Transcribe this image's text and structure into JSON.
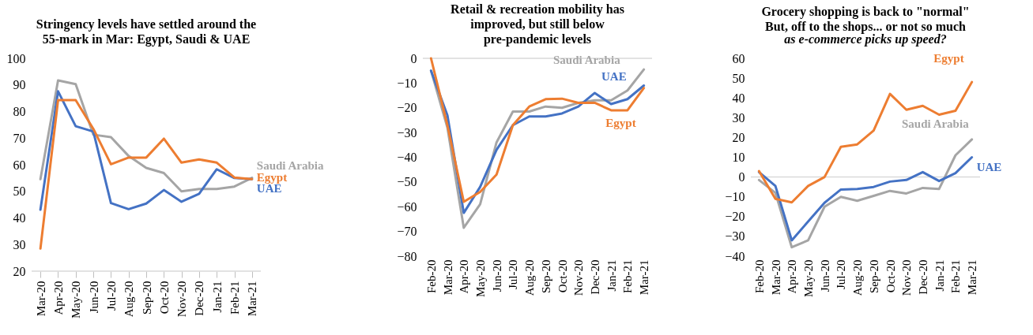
{
  "chart_data": [
    {
      "type": "line",
      "title": "Stringency levels have settled around the 55-mark in Mar: Egypt, Saudi & UAE",
      "categories": [
        "Mar-20",
        "Apr-20",
        "May-20",
        "Jun-20",
        "Jul-20",
        "Aug-20",
        "Sep-20",
        "Oct-20",
        "Nov-20",
        "Dec-20",
        "Jan-21",
        "Feb-21",
        "Mar-21"
      ],
      "ylim": [
        20,
        100
      ],
      "yticks": [
        20,
        30,
        40,
        50,
        60,
        70,
        80,
        90,
        100
      ],
      "series": [
        {
          "name": "Egypt",
          "color": "#ed7d31",
          "values": [
            28.5,
            84.3,
            84.3,
            73.5,
            60.2,
            62.7,
            62.7,
            69.8,
            60.8,
            62.0,
            60.8,
            55.2,
            54.6
          ]
        },
        {
          "name": "UAE",
          "color": "#4472c4",
          "values": [
            43.1,
            87.6,
            74.5,
            72.5,
            45.6,
            43.3,
            45.4,
            50.5,
            46.1,
            49.1,
            58.3,
            55.0,
            54.6
          ]
        },
        {
          "name": "Saudi Arabia",
          "color": "#a5a5a5",
          "values": [
            54.6,
            91.7,
            90.3,
            71.3,
            70.4,
            63.3,
            58.8,
            56.9,
            50.0,
            50.9,
            50.9,
            51.8,
            55.1
          ]
        }
      ]
    },
    {
      "type": "line",
      "title": "Retail & recreation mobility has improved, but still below pre-pandemic levels",
      "categories": [
        "Feb-20",
        "Mar-20",
        "Apr-20",
        "May-20",
        "Jun-20",
        "Jul-20",
        "Aug-20",
        "Sep-20",
        "Oct-20",
        "Nov-20",
        "Dec-20",
        "Jan-21",
        "Feb-21",
        "Mar-21"
      ],
      "ylim": [
        -80,
        0
      ],
      "yticks": [
        -80,
        -70,
        -60,
        -50,
        -40,
        -30,
        -20,
        -10,
        0
      ],
      "series": [
        {
          "name": "Egypt",
          "color": "#ed7d31",
          "values": [
            0,
            -27,
            -58,
            -54,
            -47,
            -27,
            -19.5,
            -16.5,
            -16.3,
            -18,
            -18,
            -21,
            -21,
            -12
          ]
        },
        {
          "name": "UAE",
          "color": "#4472c4",
          "values": [
            -5,
            -23,
            -62.5,
            -52,
            -37,
            -27,
            -23.5,
            -23.5,
            -22.3,
            -19.5,
            -14,
            -18.5,
            -16.5,
            -11
          ]
        },
        {
          "name": "Saudi Arabia",
          "color": "#a5a5a5",
          "values": [
            -5,
            -28,
            -68.5,
            -59,
            -34,
            -21.5,
            -21.5,
            -19.5,
            -20,
            -18,
            -17,
            -17,
            -13,
            -4.5
          ]
        }
      ]
    },
    {
      "type": "line",
      "title": "Grocery shopping is back to \"normal\" But, off to the shops... or not so much",
      "subtitle": "as e-commerce picks up speed?",
      "categories": [
        "Feb-20",
        "Mar-20",
        "Apr-20",
        "May-20",
        "Jun-20",
        "Jul-20",
        "Aug-20",
        "Sep-20",
        "Oct-20",
        "Nov-20",
        "Dec-20",
        "Jan-21",
        "Feb-21",
        "Mar-21"
      ],
      "ylim": [
        -40,
        60
      ],
      "yticks": [
        -40,
        -30,
        -20,
        -10,
        0,
        10,
        20,
        30,
        40,
        50,
        60
      ],
      "series": [
        {
          "name": "Egypt",
          "color": "#ed7d31",
          "values": [
            3,
            -11,
            -12.8,
            -4.5,
            0,
            15.3,
            16.5,
            23.5,
            42,
            34,
            36,
            31.5,
            33.5,
            48
          ]
        },
        {
          "name": "UAE",
          "color": "#4472c4",
          "values": [
            2.5,
            -4.5,
            -32,
            -22.5,
            -13,
            -6.3,
            -6,
            -5,
            -2.3,
            -1.5,
            2.5,
            -2,
            2,
            10
          ]
        },
        {
          "name": "Saudi Arabia",
          "color": "#a5a5a5",
          "values": [
            -1.5,
            -8,
            -35.5,
            -32,
            -15,
            -10,
            -12,
            -9.5,
            -7,
            -8.3,
            -5.5,
            -6,
            11,
            19
          ]
        }
      ]
    }
  ]
}
